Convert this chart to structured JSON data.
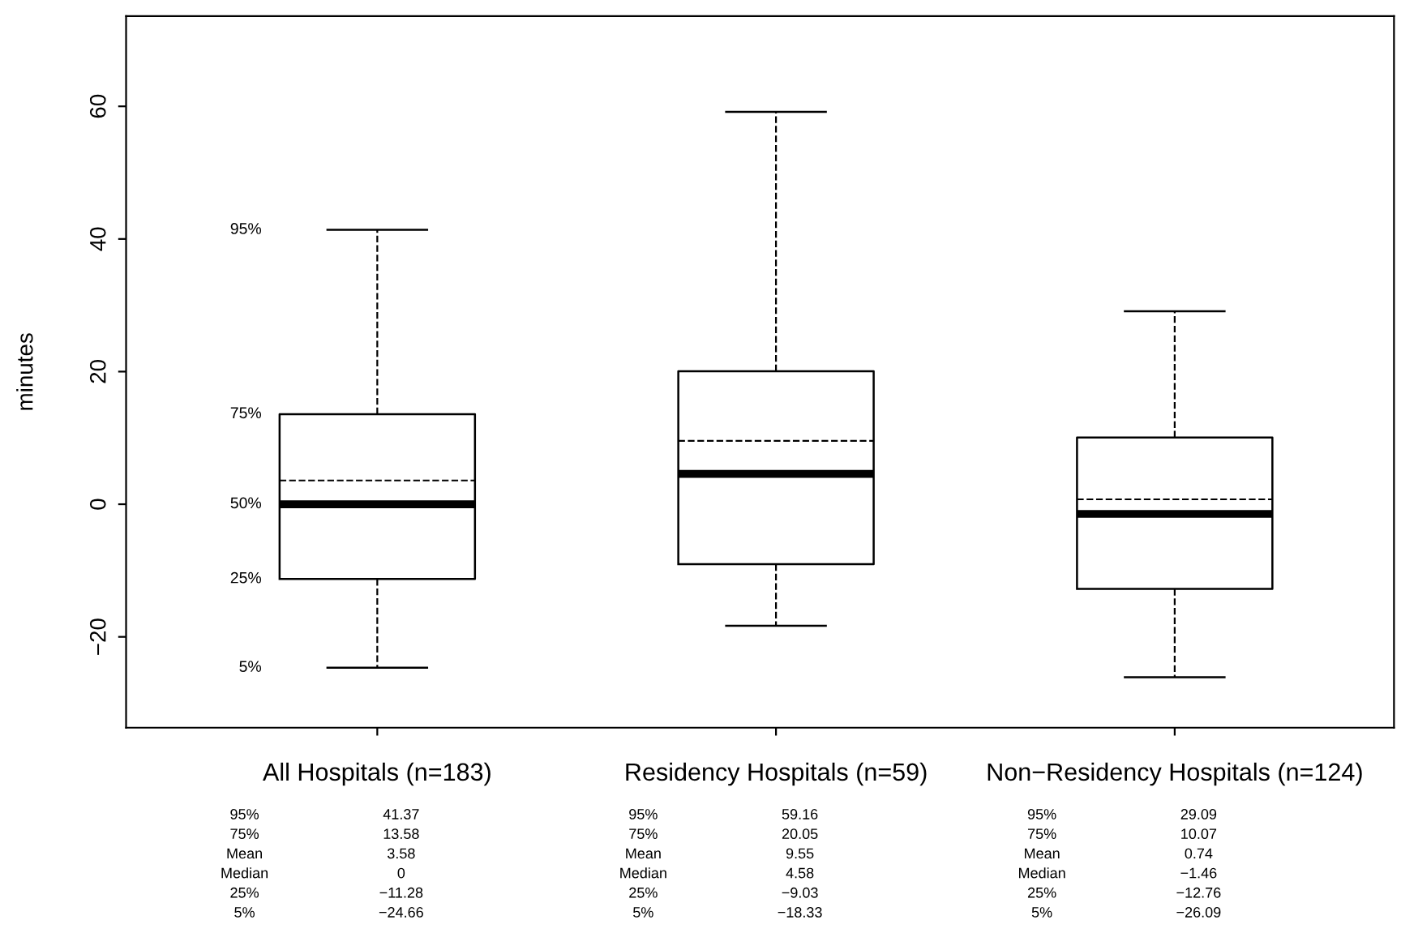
{
  "chart_data": {
    "type": "box",
    "ylabel": "minutes",
    "categories": [
      "All Hospitals (n=183)",
      "Residency Hospitals (n=59)",
      "Non−Residency Hospitals (n=124)"
    ],
    "boxes": [
      {
        "low": -24.66,
        "q1": -11.28,
        "median": 0,
        "q3": 13.58,
        "high": 41.37,
        "mean": 3.58
      },
      {
        "low": -18.33,
        "q1": -9.03,
        "median": 4.58,
        "q3": 20.05,
        "high": 59.16,
        "mean": 9.55
      },
      {
        "low": -26.09,
        "q1": -12.76,
        "median": -1.46,
        "q3": 10.07,
        "high": 29.09,
        "mean": 0.74
      }
    ],
    "ylim": [
      -33.7,
      73.6
    ],
    "yticks": [
      -20,
      0,
      20,
      40,
      60
    ],
    "annotations": [
      "95%",
      "75%",
      "50%",
      "25%",
      "5%",
      "95%",
      "75%",
      "Mean",
      "Median",
      "25%",
      "5%",
      "41.37",
      "13.58",
      "3.58",
      "0",
      "−11.28",
      "−24.66",
      "59.16",
      "20.05",
      "9.55",
      "4.58",
      "−9.03",
      "−18.33",
      "29.09",
      "10.07",
      "0.74",
      "−1.46",
      "−12.76",
      "−26.09"
    ]
  }
}
